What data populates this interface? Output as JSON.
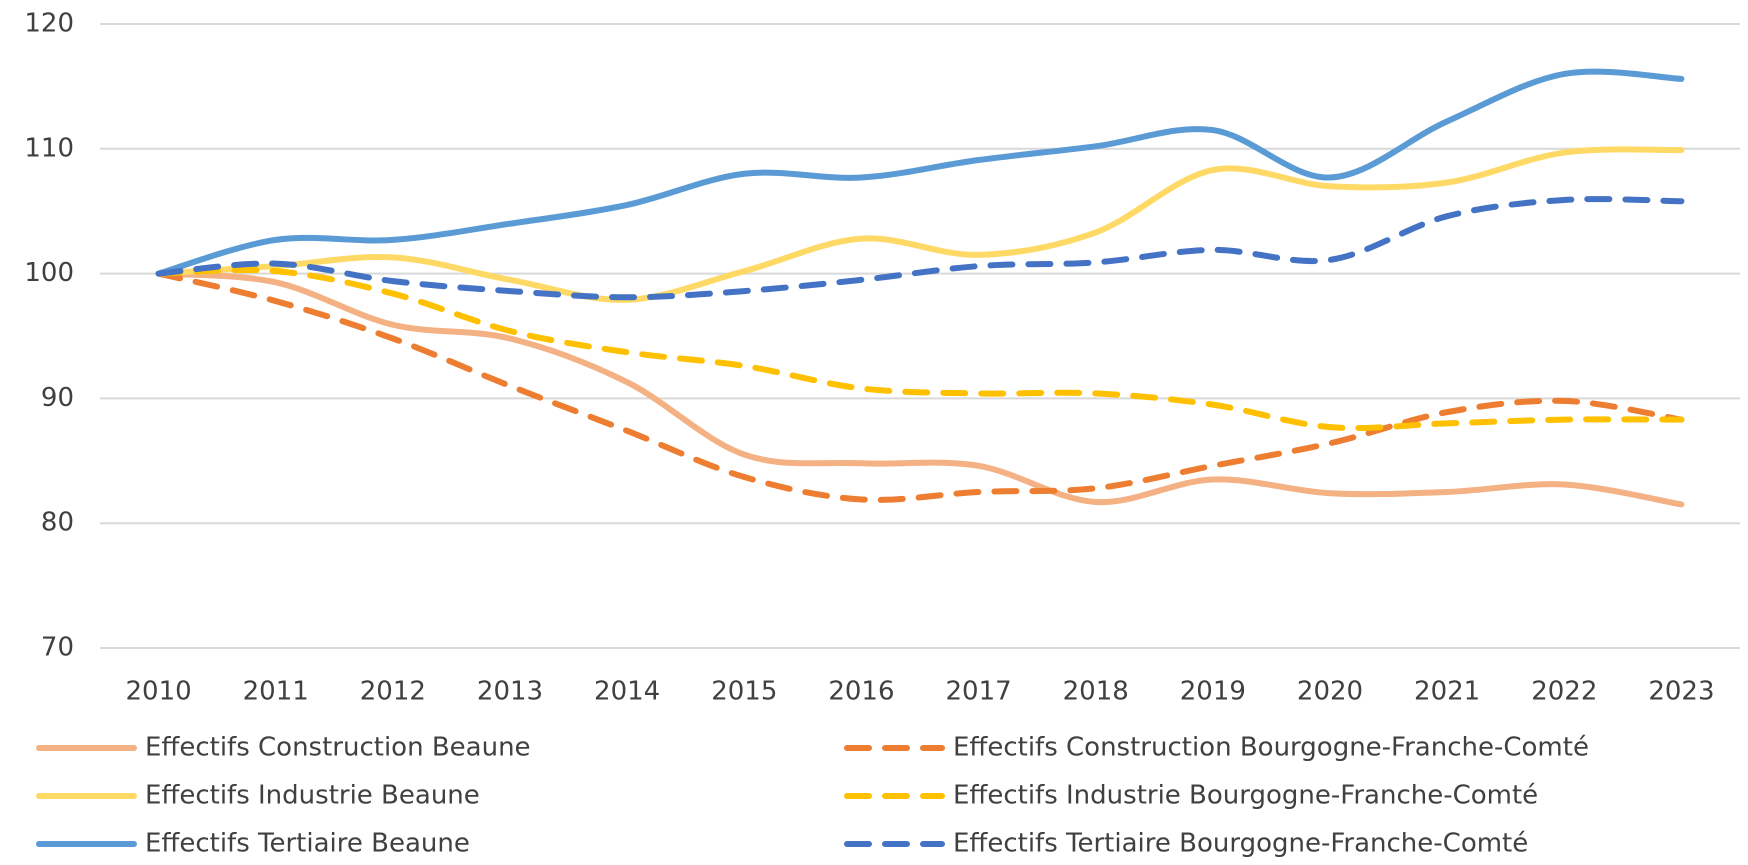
{
  "chart_data": {
    "type": "line",
    "categories": [
      "2010",
      "2011",
      "2012",
      "2013",
      "2014",
      "2015",
      "2016",
      "2017",
      "2018",
      "2019",
      "2020",
      "2021",
      "2022",
      "2023"
    ],
    "series": [
      {
        "name": "Effectifs Construction Beaune",
        "color": "#f4b183",
        "dashed": false,
        "values": [
          100,
          99.3,
          95.9,
          94.8,
          91.3,
          85.5,
          84.8,
          84.6,
          81.7,
          83.5,
          82.4,
          82.5,
          83.1,
          81.5
        ]
      },
      {
        "name": "Effectifs Construction Bourgogne-Franche-Comté",
        "color": "#ed7d31",
        "dashed": true,
        "values": [
          100,
          97.8,
          94.8,
          91.0,
          87.4,
          83.7,
          81.9,
          82.5,
          82.8,
          84.6,
          86.4,
          88.9,
          89.8,
          88.3
        ]
      },
      {
        "name": "Effectifs Industrie Beaune",
        "color": "#ffd966",
        "dashed": false,
        "values": [
          100,
          100.6,
          101.3,
          99.5,
          97.9,
          100.2,
          102.8,
          101.5,
          103.3,
          108.3,
          107.0,
          107.3,
          109.7,
          109.9
        ]
      },
      {
        "name": "Effectifs Industrie Bourgogne-Franche-Comté",
        "color": "#ffc000",
        "dashed": true,
        "values": [
          100,
          100.2,
          98.4,
          95.4,
          93.7,
          92.6,
          90.8,
          90.4,
          90.4,
          89.5,
          87.7,
          88.0,
          88.3,
          88.3
        ]
      },
      {
        "name": "Effectifs Tertiaire Beaune",
        "color": "#5b9bd5",
        "dashed": false,
        "values": [
          100,
          102.7,
          102.7,
          104.0,
          105.5,
          108.0,
          107.7,
          109.1,
          110.2,
          111.5,
          107.7,
          112.2,
          116.0,
          115.6
        ]
      },
      {
        "name": "Effectifs Tertiaire Bourgogne-Franche-Comté",
        "color": "#4472c4",
        "dashed": true,
        "values": [
          100,
          100.8,
          99.4,
          98.6,
          98.1,
          98.6,
          99.5,
          100.6,
          100.9,
          101.9,
          101.1,
          104.6,
          105.9,
          105.8
        ]
      }
    ],
    "ylim": [
      70,
      120
    ],
    "yticks": [
      70,
      80,
      90,
      100,
      110,
      120
    ],
    "grid": true,
    "smooth": true,
    "legend": "bottom"
  }
}
